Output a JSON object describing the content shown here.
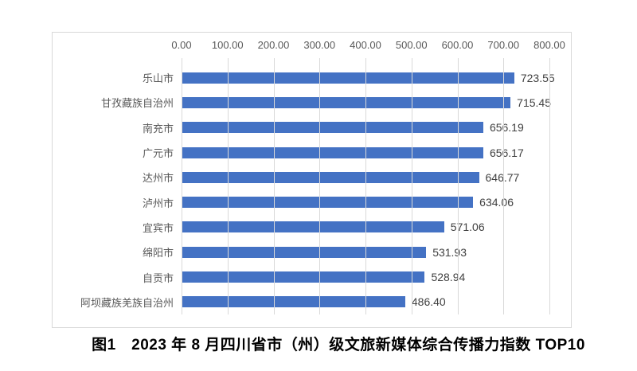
{
  "caption": "图1　2023 年 8 月四川省市（州）级文旅新媒体综合传播力指数 TOP10",
  "colors": {
    "bar": "#4472c4",
    "gridline": "#d9d9d9",
    "frame_border": "#d9d9d9",
    "axis_text": "#595959",
    "value_text": "#404040",
    "caption_text": "#000000"
  },
  "chart_data": {
    "type": "bar",
    "orientation": "horizontal",
    "title": "图1　2023 年 8 月四川省市（州）级文旅新媒体综合传播力指数 TOP10",
    "categories": [
      "乐山市",
      "甘孜藏族自治州",
      "南充市",
      "广元市",
      "达州市",
      "泸州市",
      "宜宾市",
      "绵阳市",
      "自贡市",
      "阿坝藏族羌族自治州"
    ],
    "values": [
      723.55,
      715.45,
      656.19,
      656.17,
      646.77,
      634.06,
      571.06,
      531.93,
      528.94,
      486.4
    ],
    "data_labels": [
      "723.55",
      "715.45",
      "656.19",
      "656.17",
      "646.77",
      "634.06",
      "571.06",
      "531.93",
      "528.94",
      "486.40"
    ],
    "x_tick_labels": [
      "0.00",
      "100.00",
      "200.00",
      "300.00",
      "400.00",
      "500.00",
      "600.00",
      "700.00",
      "800.00"
    ],
    "xlim": [
      0,
      800
    ],
    "xlabel": "",
    "ylabel": "",
    "grid": true,
    "legend": false,
    "axis_position": "top"
  }
}
